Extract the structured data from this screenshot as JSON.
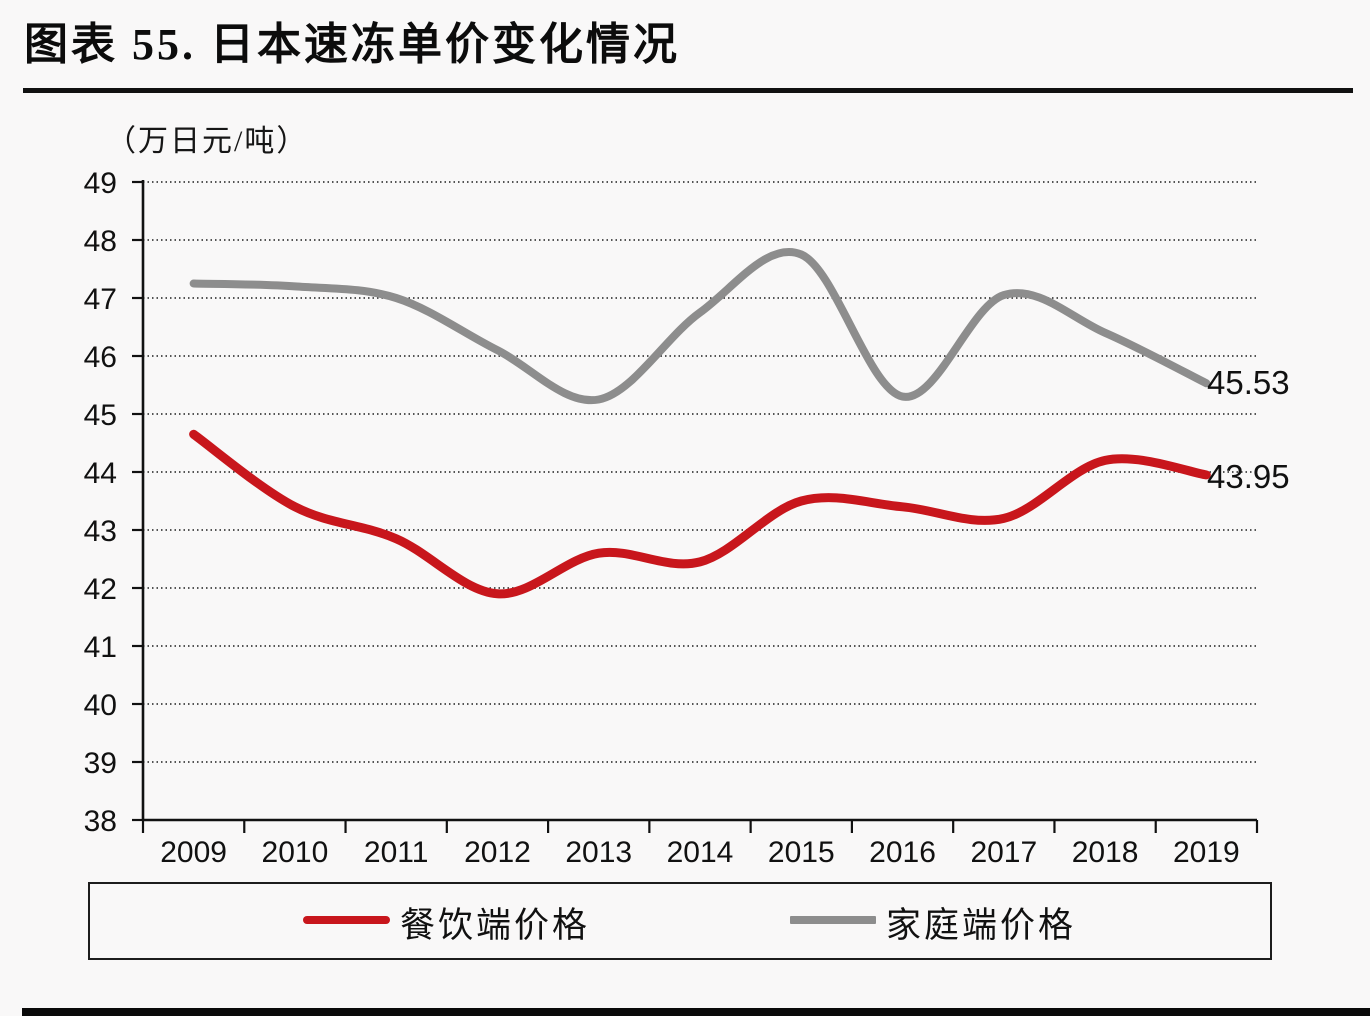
{
  "header": {
    "title": "图表 55. 日本速冻单价变化情况"
  },
  "chart_data": {
    "type": "line",
    "title": "图表 55. 日本速冻单价变化情况",
    "xlabel": "",
    "ylabel": "（万日元/吨）",
    "x": [
      "2009",
      "2010",
      "2011",
      "2012",
      "2013",
      "2014",
      "2015",
      "2016",
      "2017",
      "2018",
      "2019"
    ],
    "series": [
      {
        "name": "餐饮端价格",
        "color": "#c8161c",
        "stroke_width": 9,
        "values": [
          44.65,
          43.4,
          42.85,
          41.9,
          42.6,
          42.45,
          43.5,
          43.4,
          43.2,
          44.2,
          43.95
        ],
        "end_label": "43.95"
      },
      {
        "name": "家庭端价格",
        "color": "#8d8d8d",
        "stroke_width": 8,
        "values": [
          47.25,
          47.2,
          47.0,
          46.1,
          45.25,
          46.75,
          47.75,
          45.3,
          47.05,
          46.4,
          45.53
        ],
        "end_label": "45.53"
      }
    ],
    "ylim": [
      38,
      49
    ],
    "yticks": [
      38,
      39,
      40,
      41,
      42,
      43,
      44,
      45,
      46,
      47,
      48,
      49
    ],
    "grid": "dotted horizontal gridlines at each integer",
    "legend_position": "bottom boxed"
  },
  "legend": {
    "items": [
      {
        "label": "餐饮端价格",
        "color": "#c8161c"
      },
      {
        "label": "家庭端价格",
        "color": "#8d8d8d"
      }
    ]
  }
}
